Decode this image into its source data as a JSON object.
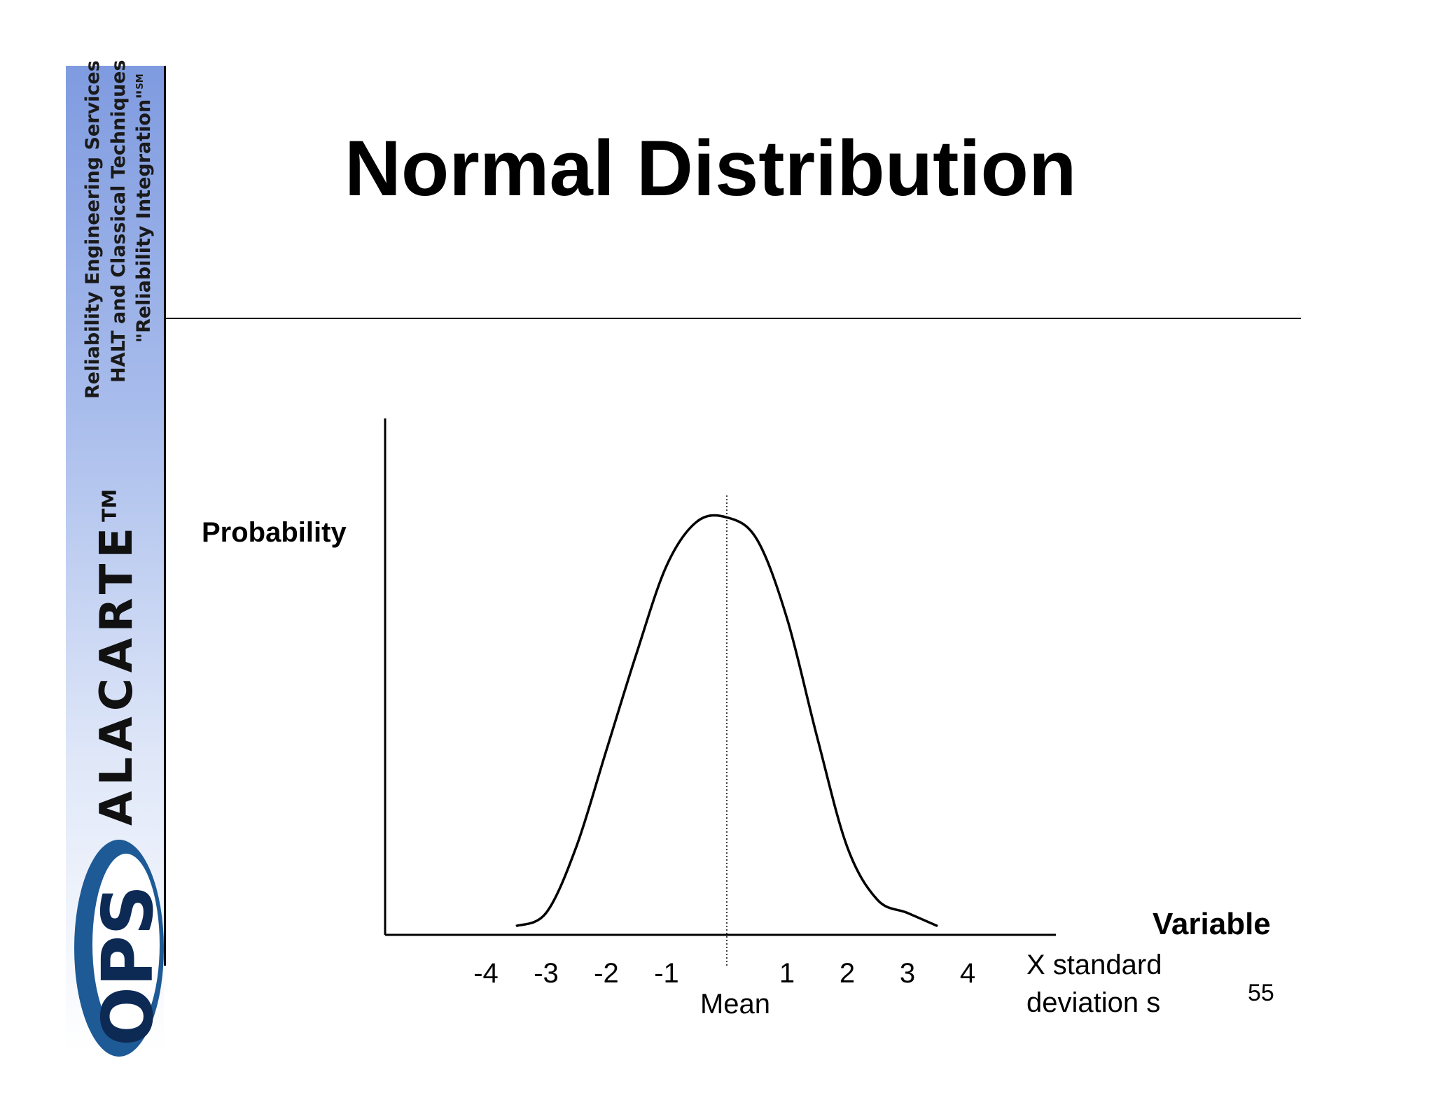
{
  "slide": {
    "title": "Normal Distribution",
    "page_number": "55"
  },
  "branding": {
    "services": [
      "Reliability Engineering Services",
      "HALT and Classical Techniques",
      "\"Reliability Integration\""
    ],
    "service_mark": "SM",
    "product_name": "ALACARTE",
    "trademark": "TM",
    "logo_text": "OPS",
    "colors": {
      "banner_top": "#7f9be0",
      "logo_blue": "#1d5a96",
      "logo_dark": "#0d2a55"
    }
  },
  "chart_data": {
    "type": "line",
    "ylabel": "Probability",
    "xlabel": "Variable",
    "x_unit_label": [
      "X standard",
      "deviation s"
    ],
    "mean_label": "Mean",
    "mean_value": 0,
    "xlim": [
      -4.5,
      6.0
    ],
    "ylim": [
      0,
      1.0
    ],
    "x_ticks": [
      -4,
      -3,
      -2,
      -1,
      1,
      2,
      3,
      4
    ],
    "x_tick_labels": [
      "-4",
      "-3",
      "-2",
      "-1",
      "1",
      "2",
      "3",
      "4"
    ],
    "series": [
      {
        "points": [
          [
            -3.5,
            0.02
          ],
          [
            -3.0,
            0.05
          ],
          [
            -2.5,
            0.2
          ],
          [
            -2.0,
            0.42
          ],
          [
            -1.5,
            0.64
          ],
          [
            -1.0,
            0.84
          ],
          [
            -0.5,
            0.94
          ],
          [
            0.0,
            0.95
          ],
          [
            0.5,
            0.9
          ],
          [
            1.0,
            0.72
          ],
          [
            1.5,
            0.45
          ],
          [
            2.0,
            0.2
          ],
          [
            2.5,
            0.08
          ],
          [
            3.0,
            0.05
          ],
          [
            3.5,
            0.02
          ]
        ]
      }
    ],
    "grid": false,
    "legend": false
  }
}
